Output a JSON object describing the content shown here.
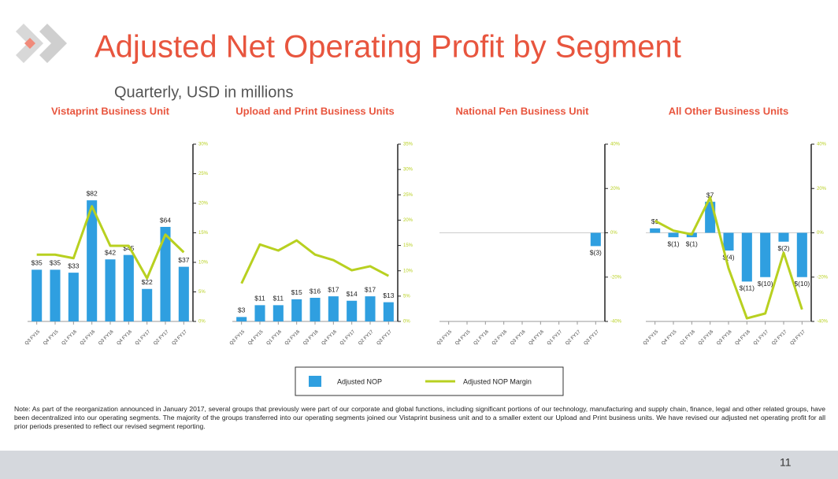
{
  "title": "Adjusted Net Operating Profit by Segment",
  "subtitle": "Quarterly, USD in millions",
  "legend": [
    {
      "name": "Adjusted NOP",
      "color": "#2f9fe0"
    },
    {
      "name": "Adjusted NOP Margin",
      "color": "#b8d020"
    }
  ],
  "note": "Note: As part of the reorganization announced in January 2017, several groups that previously were part of our corporate and global functions, including significant portions of our technology, manufacturing and supply chain, finance, legal and other related groups, have been decentralized into our operating segments. The majority of the groups transferred into our operating segments joined our Vistaprint business unit and to a smaller extent our Upload and Print business units. We have revised our adjusted net operating profit for all prior periods presented to reflect our revised segment reporting.",
  "page_number": "11",
  "chart_data": [
    {
      "type": "bar_line",
      "title": "Vistaprint Business Unit",
      "categories": [
        "Q3 FY15",
        "Q4 FY15",
        "Q1 FY16",
        "Q2 FY16",
        "Q3 FY16",
        "Q4 FY16",
        "Q1 FY17",
        "Q2 FY17",
        "Q3 FY17"
      ],
      "series": [
        {
          "color": "#2f9fe0",
          "values": [
            35,
            35,
            33,
            82,
            42,
            45,
            22,
            64,
            37
          ],
          "value_labels": [
            "$35",
            "$35",
            "$33",
            "$82",
            "$42",
            "$45",
            "$22",
            "$64",
            "$37"
          ]
        },
        {
          "color": "#b8d020",
          "axis": "y2",
          "values": [
            11.3,
            11.3,
            10.7,
            19.5,
            12.8,
            12.8,
            7.3,
            14.7,
            11.7
          ]
        }
      ],
      "ylim": [
        0,
        120
      ],
      "y2lim": [
        0,
        30
      ],
      "y2ticks": [
        {
          "value": 0,
          "label": "0%"
        },
        {
          "value": 5,
          "label": "5%"
        },
        {
          "value": 10,
          "label": "10%"
        },
        {
          "value": 15,
          "label": "15%"
        },
        {
          "value": 20,
          "label": "20%"
        },
        {
          "value": 25,
          "label": "25%"
        },
        {
          "value": 30,
          "label": "30%"
        }
      ]
    },
    {
      "type": "bar_line",
      "title": "Upload and Print Business Units",
      "categories": [
        "Q3 FY15",
        "Q4 FY15",
        "Q1 FY16",
        "Q2 FY16",
        "Q3 FY16",
        "Q4 FY16",
        "Q1 FY17",
        "Q2 FY17",
        "Q3 FY17"
      ],
      "series": [
        {
          "color": "#2f9fe0",
          "values": [
            3,
            11,
            11,
            15,
            16,
            17,
            14,
            17,
            13
          ],
          "value_labels": [
            "$3",
            "$11",
            "$11",
            "$15",
            "$16",
            "$17",
            "$14",
            "$17",
            "$13"
          ]
        },
        {
          "color": "#b8d020",
          "axis": "y2",
          "values": [
            7.5,
            15.2,
            14,
            16,
            13.2,
            12.1,
            10.1,
            10.9,
            9
          ]
        }
      ],
      "ylim": [
        0,
        120
      ],
      "y2lim": [
        0,
        35
      ],
      "y2ticks": [
        {
          "value": 0,
          "label": "0%"
        },
        {
          "value": 5,
          "label": "5%"
        },
        {
          "value": 10,
          "label": "10%"
        },
        {
          "value": 15,
          "label": "15%"
        },
        {
          "value": 20,
          "label": "20%"
        },
        {
          "value": 25,
          "label": "25%"
        },
        {
          "value": 30,
          "label": "30%"
        },
        {
          "value": 35,
          "label": "35%"
        }
      ]
    },
    {
      "type": "bar_line",
      "title": "National Pen Business Unit",
      "categories": [
        "Q3 FY15",
        "Q4 FY15",
        "Q1 FY16",
        "Q2 FY16",
        "Q3 FY16",
        "Q4 FY16",
        "Q1 FY17",
        "Q2 FY17",
        "Q3 FY17"
      ],
      "series": [
        {
          "color": "#2f9fe0",
          "values": [
            null,
            null,
            null,
            null,
            null,
            null,
            null,
            null,
            -3
          ],
          "value_labels": [
            null,
            null,
            null,
            null,
            null,
            null,
            null,
            null,
            "$(3)"
          ]
        }
      ],
      "ylim": [
        -20,
        20
      ],
      "y2lim": [
        -40,
        40
      ],
      "y2ticks": [
        {
          "value": -40,
          "label": "-40%"
        },
        {
          "value": -20,
          "label": "-20%"
        },
        {
          "value": 0,
          "label": "0%"
        },
        {
          "value": 20,
          "label": "20%"
        },
        {
          "value": 40,
          "label": "40%"
        }
      ]
    },
    {
      "type": "bar_line",
      "title": "All Other Business Units",
      "categories": [
        "Q3 FY15",
        "Q4 FY15",
        "Q1 FY16",
        "Q2 FY16",
        "Q3 FY16",
        "Q4 FY16",
        "Q1 FY17",
        "Q2 FY17",
        "Q3 FY17"
      ],
      "series": [
        {
          "color": "#2f9fe0",
          "values": [
            1,
            -1,
            -1,
            7,
            -4,
            -11,
            -10,
            -2,
            -10
          ],
          "value_labels": [
            "$1",
            "$(1)",
            "$(1)",
            "$7",
            "$(4)",
            "$(11)",
            "$(10)",
            "$(2)",
            "$(10)"
          ]
        },
        {
          "color": "#b8d020",
          "axis": "y2",
          "values": [
            5.4,
            1,
            -0.7,
            16,
            -16,
            -38.6,
            -36.4,
            -9,
            -34.6
          ]
        }
      ],
      "ylim": [
        -20,
        20
      ],
      "y2lim": [
        -40,
        40
      ],
      "y2ticks": [
        {
          "value": -40,
          "label": "-40%"
        },
        {
          "value": -20,
          "label": "-20%"
        },
        {
          "value": 0,
          "label": "0%"
        },
        {
          "value": 20,
          "label": "20%"
        },
        {
          "value": 40,
          "label": "40%"
        }
      ]
    }
  ]
}
